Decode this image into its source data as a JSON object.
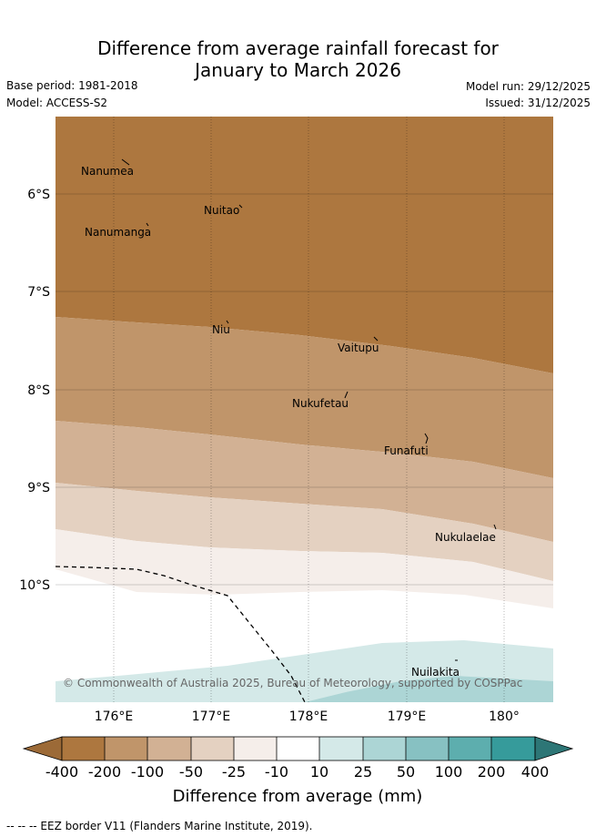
{
  "title_line1": "Difference from average rainfall forecast for",
  "title_line2": "January to March 2026",
  "base_period": "Base period: 1981-2018",
  "model": "Model: ACCESS-S2",
  "model_run": "Model run: 29/12/2025",
  "issued": "Issued: 31/12/2025",
  "copyright": "© Commonwealth of Australia 2025, Bureau of Meteorology, supported by COSPPac",
  "lat_labels": [
    "6°S",
    "7°S",
    "8°S",
    "9°S",
    "10°S"
  ],
  "lon_labels": [
    "176°E",
    "177°E",
    "178°E",
    "179°E",
    "180°"
  ],
  "places": [
    "Nanumea",
    "Nuitao",
    "Nanumanga",
    "Niu",
    "Vaitupu",
    "Nukufetau",
    "Funafuti",
    "Nukulaelae",
    "Nuilakita"
  ],
  "colorbar": {
    "title": "Difference from average (mm)",
    "ticks": [
      "-400",
      "-200",
      "-100",
      "-50",
      "-25",
      "-10",
      "10",
      "25",
      "50",
      "100",
      "200",
      "400"
    ],
    "colors": {
      "under": "#9c6a37",
      "c1": "#ad773f",
      "c2": "#c0956a",
      "c3": "#d2b194",
      "c4": "#e4d1c1",
      "c5": "#f5eeea",
      "c6": "#ffffff",
      "c7": "#d4e9e8",
      "c8": "#acd5d5",
      "c9": "#87c1c2",
      "c10": "#5daeae",
      "c11": "#369b9b",
      "over": "#2d7676"
    }
  },
  "footer": "-- -- -- EEZ border V11 (Flanders Marine Institute, 2019)."
}
